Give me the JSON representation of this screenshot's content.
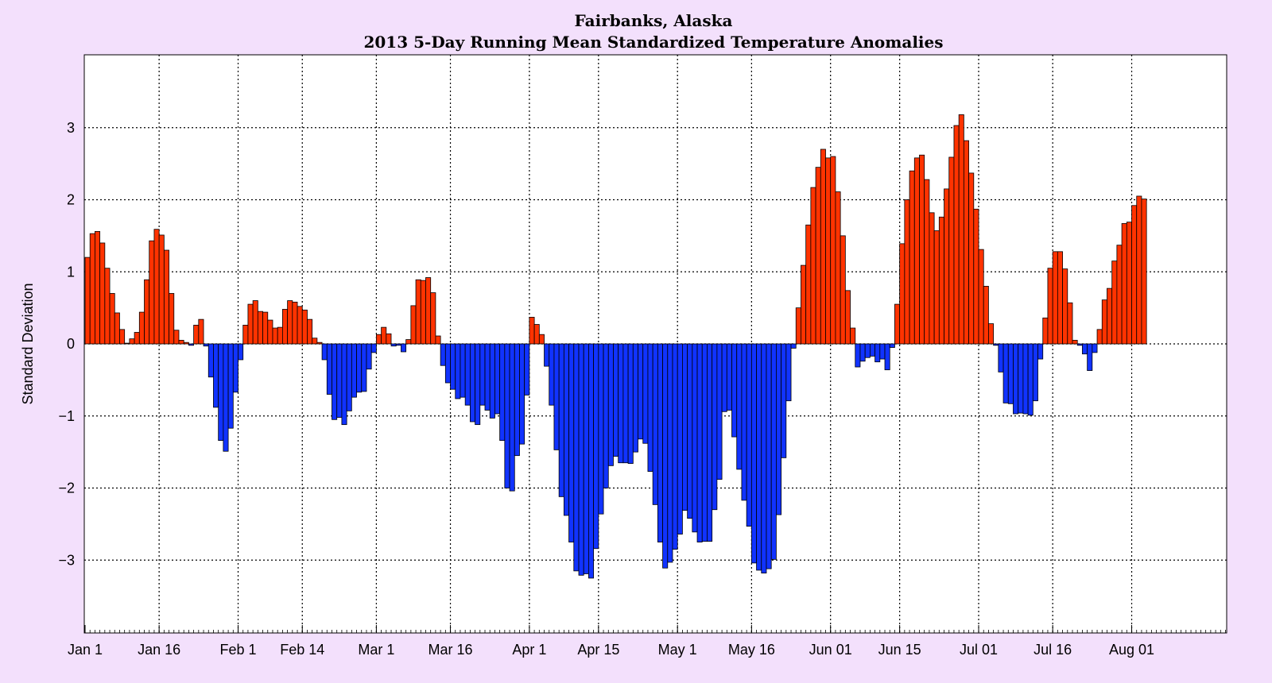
{
  "chart_data": {
    "type": "bar",
    "title": "Fairbanks, Alaska",
    "subtitle": "2013 5-Day Running Mean Standardized Temperature Anomalies",
    "ylabel": "Standard Deviation",
    "xlabel": "",
    "ylim": [
      -4,
      4
    ],
    "xlim": [
      0,
      231
    ],
    "yticks": [
      -3,
      -2,
      -1,
      0,
      1,
      2,
      3
    ],
    "ytick_labels": [
      "−3",
      "−2",
      "−1",
      "0",
      "1",
      "2",
      "3"
    ],
    "xticks": [
      {
        "day": 0,
        "label": "Jan 1"
      },
      {
        "day": 15,
        "label": "Jan 16"
      },
      {
        "day": 31,
        "label": "Feb 1"
      },
      {
        "day": 44,
        "label": "Feb 14"
      },
      {
        "day": 59,
        "label": "Mar 1"
      },
      {
        "day": 74,
        "label": "Mar 16"
      },
      {
        "day": 90,
        "label": "Apr 1"
      },
      {
        "day": 104,
        "label": "Apr 15"
      },
      {
        "day": 120,
        "label": "May 1"
      },
      {
        "day": 135,
        "label": "May 16"
      },
      {
        "day": 151,
        "label": "Jun 01"
      },
      {
        "day": 165,
        "label": "Jun 15"
      },
      {
        "day": 181,
        "label": "Jul 01"
      },
      {
        "day": 196,
        "label": "Jul 16"
      },
      {
        "day": 212,
        "label": "Aug 01"
      }
    ],
    "grid": true,
    "colors": {
      "positive": "#ff3300",
      "negative": "#1133ff",
      "background": "#f3e0fc",
      "plot_background": "#ffffff"
    },
    "values": [
      1.2,
      1.53,
      1.56,
      1.4,
      1.05,
      0.7,
      0.43,
      0.2,
      0.01,
      0.07,
      0.16,
      0.44,
      0.89,
      1.43,
      1.59,
      1.51,
      1.3,
      0.7,
      0.19,
      0.05,
      0.02,
      -0.02,
      0.26,
      0.34,
      -0.03,
      -0.46,
      -0.88,
      -1.34,
      -1.49,
      -1.17,
      -0.67,
      -0.22,
      0.26,
      0.55,
      0.6,
      0.45,
      0.44,
      0.33,
      0.22,
      0.23,
      0.48,
      0.6,
      0.58,
      0.52,
      0.47,
      0.34,
      0.08,
      0.02,
      -0.22,
      -0.7,
      -1.05,
      -1.02,
      -1.12,
      -0.93,
      -0.74,
      -0.67,
      -0.66,
      -0.35,
      -0.12,
      0.13,
      0.23,
      0.14,
      -0.03,
      -0.02,
      -0.11,
      0.06,
      0.53,
      0.89,
      0.88,
      0.92,
      0.71,
      0.11,
      -0.3,
      -0.54,
      -0.63,
      -0.76,
      -0.74,
      -0.85,
      -1.08,
      -1.12,
      -0.85,
      -0.92,
      -1.03,
      -0.97,
      -1.34,
      -2.0,
      -2.04,
      -1.55,
      -1.39,
      -0.71,
      0.37,
      0.27,
      0.13,
      -0.31,
      -0.85,
      -1.47,
      -2.12,
      -2.38,
      -2.75,
      -3.15,
      -3.21,
      -3.19,
      -3.25,
      -2.84,
      -2.36,
      -2.0,
      -1.69,
      -1.56,
      -1.65,
      -1.65,
      -1.66,
      -1.5,
      -1.32,
      -1.38,
      -1.77,
      -2.23,
      -2.75,
      -3.11,
      -3.03,
      -2.85,
      -2.64,
      -2.31,
      -2.42,
      -2.61,
      -2.75,
      -2.74,
      -2.74,
      -2.3,
      -1.88,
      -0.94,
      -0.92,
      -1.29,
      -1.74,
      -2.17,
      -2.53,
      -3.04,
      -3.14,
      -3.18,
      -3.12,
      -2.99,
      -2.37,
      -1.58,
      -0.79,
      -0.06,
      0.5,
      1.09,
      1.65,
      2.17,
      2.45,
      2.7,
      2.58,
      2.6,
      2.11,
      1.5,
      0.74,
      0.22,
      -0.32,
      -0.24,
      -0.19,
      -0.17,
      -0.25,
      -0.21,
      -0.36,
      -0.05,
      0.55,
      1.39,
      2.0,
      2.4,
      2.58,
      2.62,
      2.28,
      1.82,
      1.57,
      1.76,
      2.15,
      2.59,
      3.03,
      3.18,
      2.82,
      2.37,
      1.87,
      1.31,
      0.8,
      0.28,
      -0.02,
      -0.39,
      -0.82,
      -0.83,
      -0.97,
      -0.96,
      -0.97,
      -0.99,
      -0.79,
      -0.21,
      0.36,
      1.05,
      1.28,
      1.28,
      1.04,
      0.57,
      0.05,
      -0.02,
      -0.14,
      -0.37,
      -0.12,
      0.2,
      0.61,
      0.77,
      1.15,
      1.37,
      1.67,
      1.69,
      1.92,
      2.05,
      2.01
    ]
  }
}
